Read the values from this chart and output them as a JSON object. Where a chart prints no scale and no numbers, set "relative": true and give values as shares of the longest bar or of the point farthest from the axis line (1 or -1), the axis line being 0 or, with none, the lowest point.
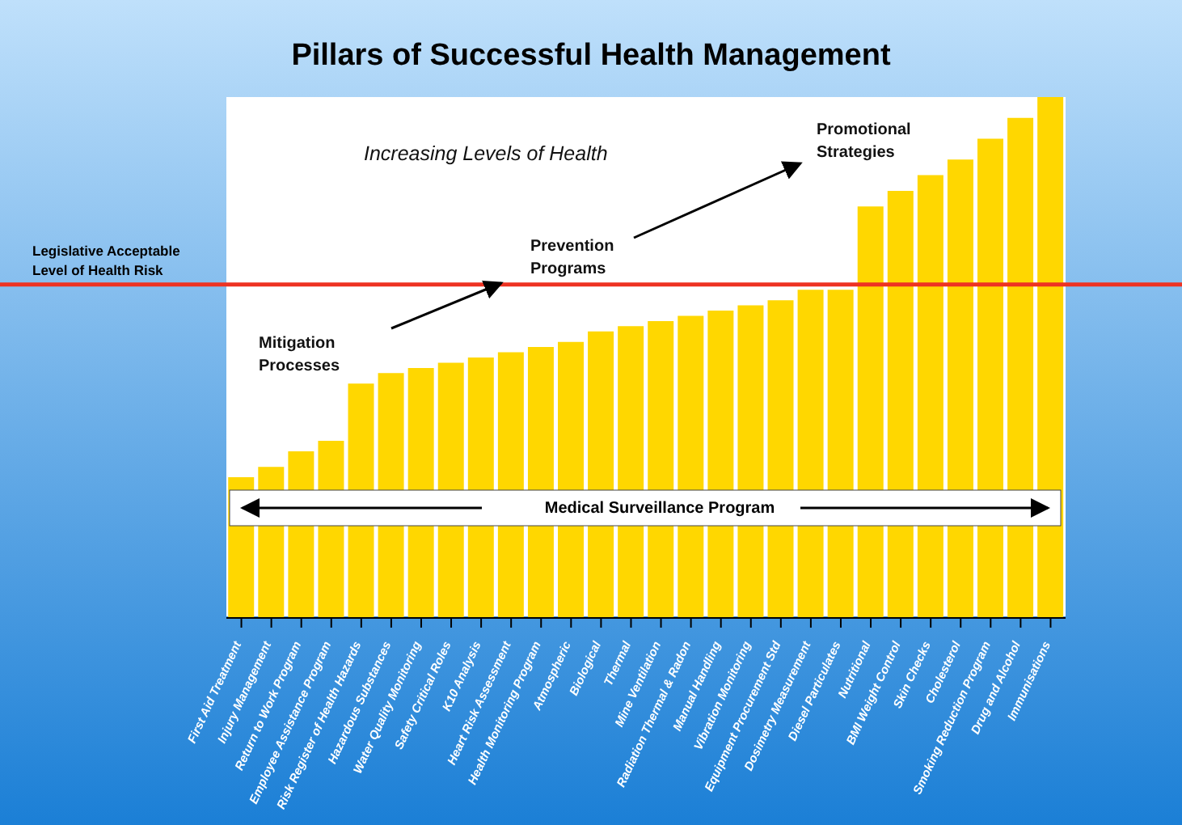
{
  "chart_data": {
    "type": "bar",
    "title": "Pillars of Successful Health Management",
    "relative": true,
    "categories": [
      "First Aid Treatment",
      "Injury Management",
      "Return to Work Program",
      "Employee Assistance Program",
      "Risk Register of Health Hazards",
      "Hazardous Substances",
      "Water Quality Monitoring",
      "Safety Critical Roles",
      "K10 Analysis",
      "Heart Risk Assessment",
      "Health Monitoring Program",
      "Atmospheric",
      "Biological",
      "Thermal",
      "Mine Ventilation",
      "Radiation Thermal & Radon",
      "Manual Handling",
      "Vibration Monitoring",
      "Equipment Procurement Std",
      "Dosimetry Measurement",
      "Diesel Particulates",
      "Nutritional",
      "BMI Weight Control",
      "Skin Checks",
      "Cholesterol",
      "Smoking Reduction Program",
      "Drug and Alcohol",
      "Immunisations"
    ],
    "values": [
      0.27,
      0.29,
      0.32,
      0.34,
      0.45,
      0.47,
      0.48,
      0.49,
      0.5,
      0.51,
      0.52,
      0.53,
      0.55,
      0.56,
      0.57,
      0.58,
      0.59,
      0.6,
      0.61,
      0.63,
      0.63,
      0.79,
      0.82,
      0.85,
      0.88,
      0.92,
      0.96,
      1
    ],
    "color": "#ffd700",
    "ref_lines": [
      {
        "axis": "y",
        "value": 0.64,
        "label": "Legislative Acceptable Level of Health Risk",
        "color": "#ee3322"
      }
    ],
    "annotations": [
      "Increasing Levels of Health",
      "Mitigation Processes",
      "Prevention Programs",
      "Promotional Strategies",
      "Medical Surveillance Program"
    ],
    "grid": false,
    "legend": false
  }
}
